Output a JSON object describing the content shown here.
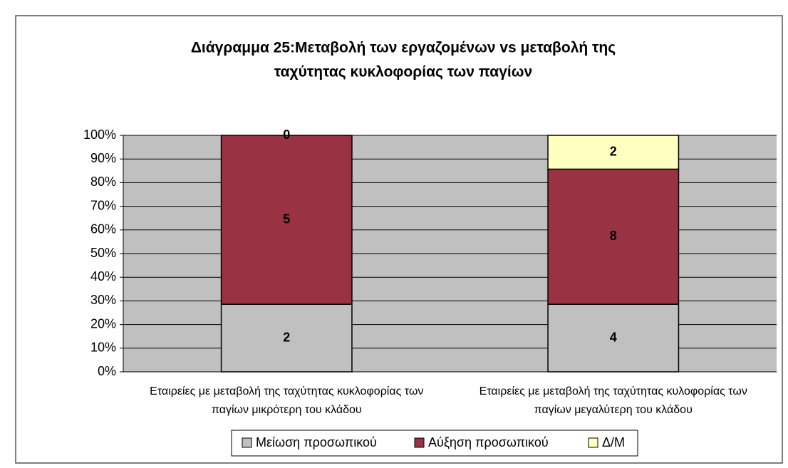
{
  "chart_data": {
    "type": "bar",
    "stacking": "percent",
    "title": [
      "Διάγραμμα 25:Μεταβολή των εργαζομένων vs μεταβολή της",
      "ταχύτητας κυκλοφορίας των παγίων"
    ],
    "categories": [
      [
        "Εταιρείες με μεταβολή της ταχύτητας κυκλοφορίας των",
        "παγίων μικρότερη του κλάδου"
      ],
      [
        "Εταιρείες με μεταβολή της ταχύτητας κυλοφορίας των",
        "παγίων μεγαλύτερη του κλάδου"
      ]
    ],
    "series": [
      {
        "name": "Μείωση προσωπικού",
        "color": "#c0c0c0",
        "values": [
          2,
          4
        ]
      },
      {
        "name": "Αύξηση προσωπικού",
        "color": "#993344",
        "values": [
          5,
          8
        ]
      },
      {
        "name": "Δ/Μ",
        "color": "#ffffc0",
        "values": [
          0,
          2
        ]
      }
    ],
    "ylim": [
      0,
      100
    ],
    "yticks": [
      {
        "value": 0,
        "label": "0%"
      },
      {
        "value": 10,
        "label": "10%"
      },
      {
        "value": 20,
        "label": "20%"
      },
      {
        "value": 30,
        "label": "30%"
      },
      {
        "value": 40,
        "label": "40%"
      },
      {
        "value": 50,
        "label": "50%"
      },
      {
        "value": 60,
        "label": "60%"
      },
      {
        "value": 70,
        "label": "70%"
      },
      {
        "value": 80,
        "label": "80%"
      },
      {
        "value": 90,
        "label": "90%"
      },
      {
        "value": 100,
        "label": "100%"
      }
    ],
    "grid": true,
    "plot_background": "#c0c0c0",
    "legend": "bottom"
  }
}
